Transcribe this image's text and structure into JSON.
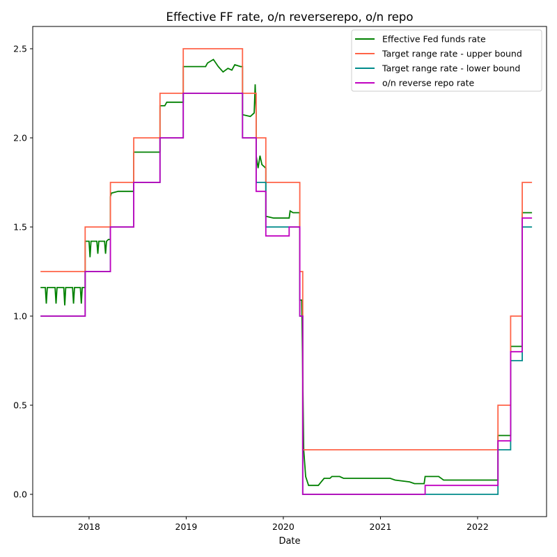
{
  "chart_data": {
    "type": "line",
    "title": "Effective FF rate, o/n reverserepo, o/n repo",
    "xlabel": "Date",
    "ylabel": "",
    "xlim": [
      2017.42,
      2022.71
    ],
    "ylim": [
      -0.125,
      2.625
    ],
    "x_ticks": [
      2018,
      2019,
      2020,
      2021,
      2022
    ],
    "x_tick_labels": [
      "2018",
      "2019",
      "2020",
      "2021",
      "2022"
    ],
    "y_ticks": [
      0.0,
      0.5,
      1.0,
      1.5,
      2.0,
      2.5
    ],
    "y_tick_labels": [
      "0.0",
      "0.5",
      "1.0",
      "1.5",
      "2.0",
      "2.5"
    ],
    "grid": false,
    "legend_position": "top-right",
    "series": [
      {
        "name": "Effective Fed funds rate",
        "color": "#008000",
        "points": [
          [
            2017.5,
            1.16
          ],
          [
            2017.55,
            1.16
          ],
          [
            2017.56,
            1.07
          ],
          [
            2017.57,
            1.16
          ],
          [
            2017.65,
            1.16
          ],
          [
            2017.66,
            1.07
          ],
          [
            2017.67,
            1.16
          ],
          [
            2017.74,
            1.16
          ],
          [
            2017.75,
            1.06
          ],
          [
            2017.76,
            1.16
          ],
          [
            2017.83,
            1.16
          ],
          [
            2017.84,
            1.07
          ],
          [
            2017.85,
            1.16
          ],
          [
            2017.91,
            1.16
          ],
          [
            2017.92,
            1.07
          ],
          [
            2017.93,
            1.16
          ],
          [
            2017.96,
            1.16
          ],
          [
            2017.96,
            1.42
          ],
          [
            2018.0,
            1.42
          ],
          [
            2018.01,
            1.33
          ],
          [
            2018.02,
            1.42
          ],
          [
            2018.08,
            1.42
          ],
          [
            2018.09,
            1.35
          ],
          [
            2018.1,
            1.42
          ],
          [
            2018.16,
            1.42
          ],
          [
            2018.17,
            1.35
          ],
          [
            2018.18,
            1.42
          ],
          [
            2018.2,
            1.43
          ],
          [
            2018.22,
            1.43
          ],
          [
            2018.22,
            1.67
          ],
          [
            2018.23,
            1.69
          ],
          [
            2018.3,
            1.7
          ],
          [
            2018.46,
            1.7
          ],
          [
            2018.46,
            1.92
          ],
          [
            2018.7,
            1.92
          ],
          [
            2018.73,
            1.92
          ],
          [
            2018.73,
            2.18
          ],
          [
            2018.78,
            2.18
          ],
          [
            2018.8,
            2.2
          ],
          [
            2018.97,
            2.2
          ],
          [
            2018.97,
            2.4
          ],
          [
            2019.2,
            2.4
          ],
          [
            2019.22,
            2.42
          ],
          [
            2019.28,
            2.44
          ],
          [
            2019.33,
            2.4
          ],
          [
            2019.38,
            2.37
          ],
          [
            2019.43,
            2.39
          ],
          [
            2019.47,
            2.38
          ],
          [
            2019.5,
            2.41
          ],
          [
            2019.56,
            2.4
          ],
          [
            2019.58,
            2.4
          ],
          [
            2019.58,
            2.13
          ],
          [
            2019.66,
            2.12
          ],
          [
            2019.7,
            2.14
          ],
          [
            2019.71,
            2.3
          ],
          [
            2019.72,
            2.14
          ],
          [
            2019.72,
            1.9
          ],
          [
            2019.74,
            1.83
          ],
          [
            2019.76,
            1.9
          ],
          [
            2019.78,
            1.85
          ],
          [
            2019.82,
            1.83
          ],
          [
            2019.82,
            1.56
          ],
          [
            2019.9,
            1.55
          ],
          [
            2020.0,
            1.55
          ],
          [
            2020.06,
            1.55
          ],
          [
            2020.07,
            1.59
          ],
          [
            2020.1,
            1.58
          ],
          [
            2020.17,
            1.58
          ],
          [
            2020.17,
            1.09
          ],
          [
            2020.19,
            1.09
          ],
          [
            2020.21,
            0.25
          ],
          [
            2020.23,
            0.1
          ],
          [
            2020.26,
            0.05
          ],
          [
            2020.36,
            0.05
          ],
          [
            2020.42,
            0.09
          ],
          [
            2020.48,
            0.09
          ],
          [
            2020.5,
            0.1
          ],
          [
            2020.58,
            0.1
          ],
          [
            2020.62,
            0.09
          ],
          [
            2020.9,
            0.09
          ],
          [
            2020.95,
            0.09
          ],
          [
            2021.1,
            0.09
          ],
          [
            2021.15,
            0.08
          ],
          [
            2021.3,
            0.07
          ],
          [
            2021.35,
            0.06
          ],
          [
            2021.45,
            0.06
          ],
          [
            2021.46,
            0.1
          ],
          [
            2021.6,
            0.1
          ],
          [
            2021.65,
            0.08
          ],
          [
            2022.21,
            0.08
          ],
          [
            2022.21,
            0.33
          ],
          [
            2022.34,
            0.33
          ],
          [
            2022.34,
            0.83
          ],
          [
            2022.46,
            0.83
          ],
          [
            2022.46,
            1.58
          ],
          [
            2022.56,
            1.58
          ]
        ]
      },
      {
        "name": "Target range rate - upper bound",
        "color": "#ff6347",
        "points": [
          [
            2017.5,
            1.25
          ],
          [
            2017.96,
            1.25
          ],
          [
            2017.96,
            1.5
          ],
          [
            2018.22,
            1.5
          ],
          [
            2018.22,
            1.75
          ],
          [
            2018.46,
            1.75
          ],
          [
            2018.46,
            2.0
          ],
          [
            2018.73,
            2.0
          ],
          [
            2018.73,
            2.25
          ],
          [
            2018.97,
            2.25
          ],
          [
            2018.97,
            2.5
          ],
          [
            2019.58,
            2.5
          ],
          [
            2019.58,
            2.25
          ],
          [
            2019.72,
            2.25
          ],
          [
            2019.72,
            2.0
          ],
          [
            2019.82,
            2.0
          ],
          [
            2019.82,
            1.75
          ],
          [
            2020.17,
            1.75
          ],
          [
            2020.17,
            1.25
          ],
          [
            2020.2,
            1.25
          ],
          [
            2020.2,
            0.25
          ],
          [
            2022.21,
            0.25
          ],
          [
            2022.21,
            0.5
          ],
          [
            2022.34,
            0.5
          ],
          [
            2022.34,
            1.0
          ],
          [
            2022.46,
            1.0
          ],
          [
            2022.46,
            1.75
          ],
          [
            2022.56,
            1.75
          ]
        ]
      },
      {
        "name": "Target range rate - lower bound",
        "color": "#008b8b",
        "points": [
          [
            2017.5,
            1.0
          ],
          [
            2017.96,
            1.0
          ],
          [
            2017.96,
            1.25
          ],
          [
            2018.22,
            1.25
          ],
          [
            2018.22,
            1.5
          ],
          [
            2018.46,
            1.5
          ],
          [
            2018.46,
            1.75
          ],
          [
            2018.73,
            1.75
          ],
          [
            2018.73,
            2.0
          ],
          [
            2018.97,
            2.0
          ],
          [
            2018.97,
            2.25
          ],
          [
            2019.58,
            2.25
          ],
          [
            2019.58,
            2.0
          ],
          [
            2019.72,
            2.0
          ],
          [
            2019.72,
            1.75
          ],
          [
            2019.82,
            1.75
          ],
          [
            2019.82,
            1.5
          ],
          [
            2020.17,
            1.5
          ],
          [
            2020.17,
            1.0
          ],
          [
            2020.2,
            1.0
          ],
          [
            2020.2,
            0.0
          ],
          [
            2022.21,
            0.0
          ],
          [
            2022.21,
            0.25
          ],
          [
            2022.34,
            0.25
          ],
          [
            2022.34,
            0.75
          ],
          [
            2022.46,
            0.75
          ],
          [
            2022.46,
            1.5
          ],
          [
            2022.56,
            1.5
          ]
        ]
      },
      {
        "name": "o/n reverse repo rate",
        "color": "#c000c0",
        "points": [
          [
            2017.5,
            1.0
          ],
          [
            2017.96,
            1.0
          ],
          [
            2017.96,
            1.25
          ],
          [
            2018.22,
            1.25
          ],
          [
            2018.22,
            1.5
          ],
          [
            2018.46,
            1.5
          ],
          [
            2018.46,
            1.75
          ],
          [
            2018.73,
            1.75
          ],
          [
            2018.73,
            2.0
          ],
          [
            2018.97,
            2.0
          ],
          [
            2018.97,
            2.25
          ],
          [
            2019.58,
            2.25
          ],
          [
            2019.58,
            2.0
          ],
          [
            2019.72,
            2.0
          ],
          [
            2019.72,
            1.7
          ],
          [
            2019.82,
            1.7
          ],
          [
            2019.82,
            1.45
          ],
          [
            2020.06,
            1.45
          ],
          [
            2020.06,
            1.5
          ],
          [
            2020.17,
            1.5
          ],
          [
            2020.17,
            1.0
          ],
          [
            2020.2,
            1.0
          ],
          [
            2020.2,
            0.0
          ],
          [
            2021.46,
            0.0
          ],
          [
            2021.46,
            0.05
          ],
          [
            2022.21,
            0.05
          ],
          [
            2022.21,
            0.3
          ],
          [
            2022.34,
            0.3
          ],
          [
            2022.34,
            0.8
          ],
          [
            2022.46,
            0.8
          ],
          [
            2022.46,
            1.55
          ],
          [
            2022.56,
            1.55
          ]
        ]
      }
    ]
  }
}
